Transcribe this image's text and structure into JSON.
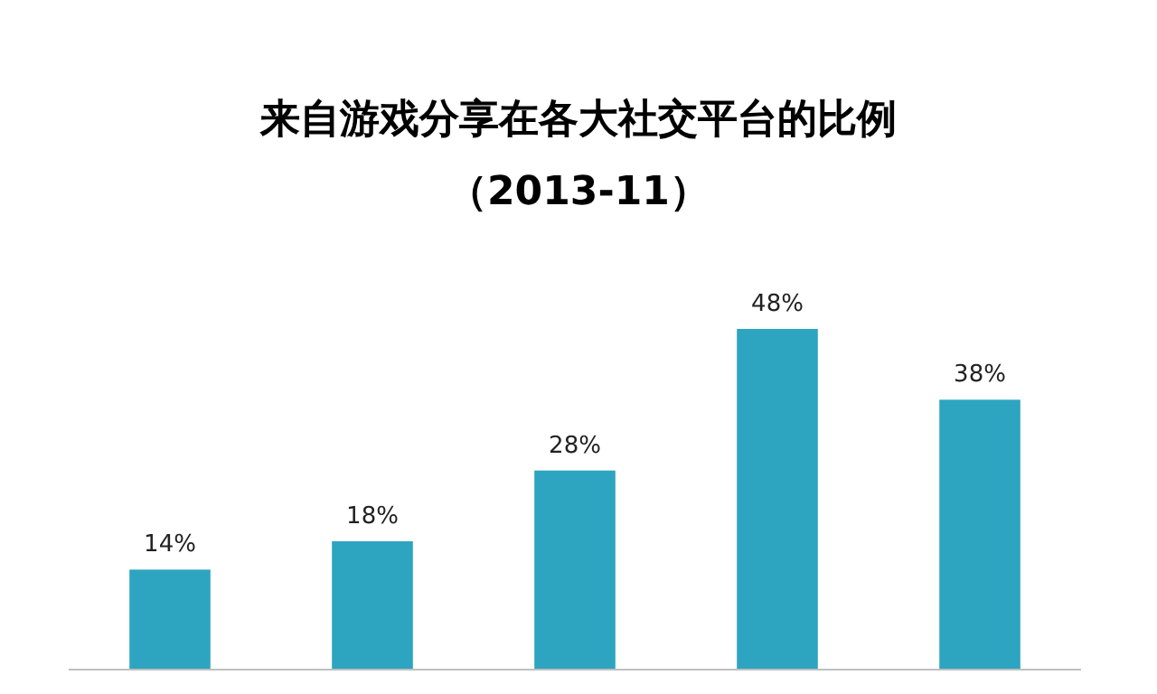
{
  "chart_data": {
    "type": "bar",
    "title": "来自游戏分享在各大社交平台的比例",
    "subtitle": "（2013-11）",
    "categories": [
      null,
      null,
      null,
      null,
      null
    ],
    "values": [
      14,
      18,
      28,
      48,
      38
    ],
    "value_labels": [
      "14%",
      "18%",
      "28%",
      "48%",
      "38%"
    ],
    "color": "#2ea5c0"
  }
}
